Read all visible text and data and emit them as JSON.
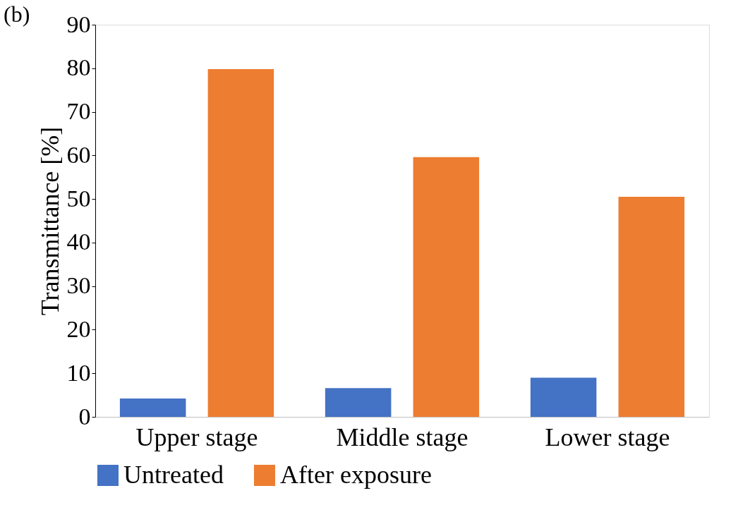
{
  "chart_data": {
    "type": "bar",
    "title": "(b)",
    "ylabel": "Transmittance [%]",
    "categories": [
      "Upper stage",
      "Middle stage",
      "Lower stage"
    ],
    "series": [
      {
        "name": "Untreated",
        "color": "#4472c4",
        "values": [
          4.2,
          6.6,
          9.0
        ]
      },
      {
        "name": "After exposure",
        "color": "#ed7d31",
        "values": [
          79.8,
          59.6,
          50.5
        ]
      }
    ],
    "ylim": [
      0,
      90
    ],
    "yticks": [
      0,
      10,
      20,
      30,
      40,
      50,
      60,
      70,
      80,
      90
    ],
    "grid": false,
    "legend": "bottom"
  }
}
